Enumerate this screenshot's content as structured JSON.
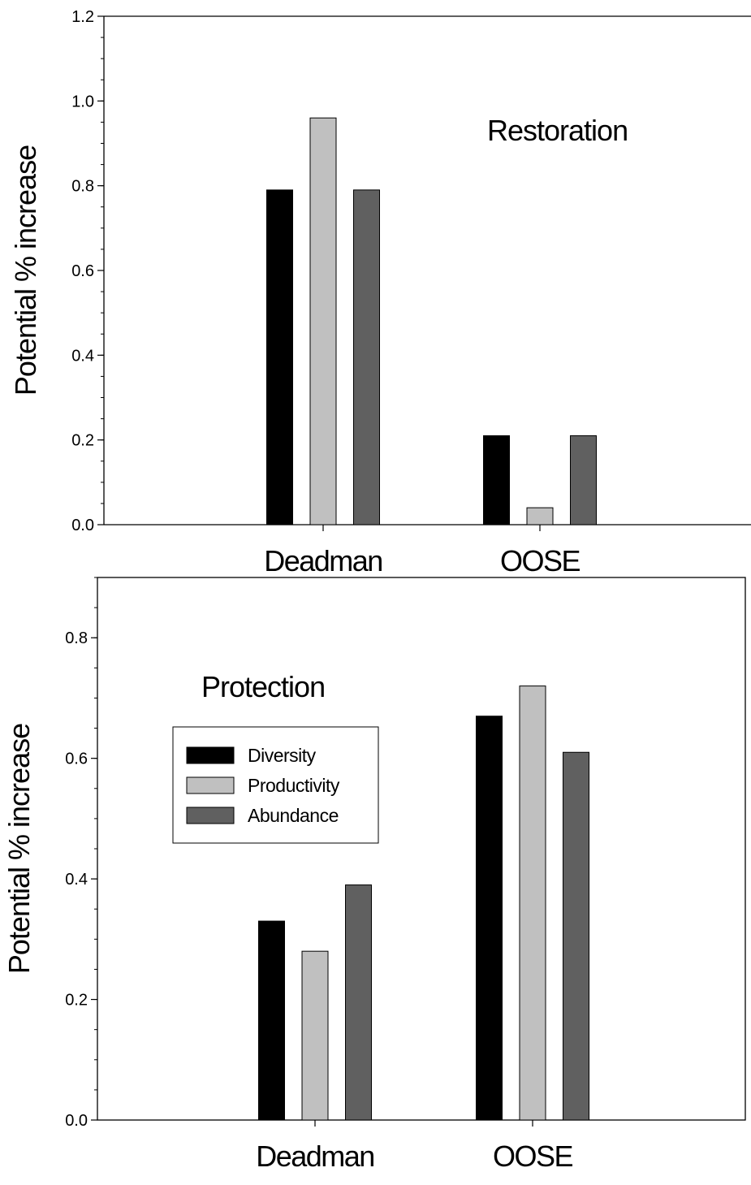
{
  "chart_data": [
    {
      "type": "bar",
      "annotation": "Restoration",
      "ylabel": "Potential % increase",
      "categories": [
        "Deadman",
        "OOSE"
      ],
      "ylim": [
        0,
        1.2
      ],
      "yticks": [
        "0.0",
        "0.2",
        "0.4",
        "0.6",
        "0.8",
        "1.0",
        "1.2"
      ],
      "grid": false,
      "legend": null,
      "series": [
        {
          "name": "Diversity",
          "color": "#000000",
          "values": [
            0.79,
            0.21
          ]
        },
        {
          "name": "Productivity",
          "color": "#c0c0c0",
          "values": [
            0.96,
            0.04
          ]
        },
        {
          "name": "Abundance",
          "color": "#606060",
          "values": [
            0.79,
            0.21
          ]
        }
      ]
    },
    {
      "type": "bar",
      "annotation": "Protection",
      "ylabel": "Potential % increase",
      "categories": [
        "Deadman",
        "OOSE"
      ],
      "ylim": [
        0,
        0.9
      ],
      "yticks": [
        "0.0",
        "0.2",
        "0.4",
        "0.6",
        "0.8"
      ],
      "grid": false,
      "legend": "upper-left",
      "series": [
        {
          "name": "Diversity",
          "color": "#000000",
          "values": [
            0.33,
            0.67
          ]
        },
        {
          "name": "Productivity",
          "color": "#c0c0c0",
          "values": [
            0.28,
            0.72
          ]
        },
        {
          "name": "Abundance",
          "color": "#606060",
          "values": [
            0.39,
            0.61
          ]
        }
      ]
    }
  ]
}
